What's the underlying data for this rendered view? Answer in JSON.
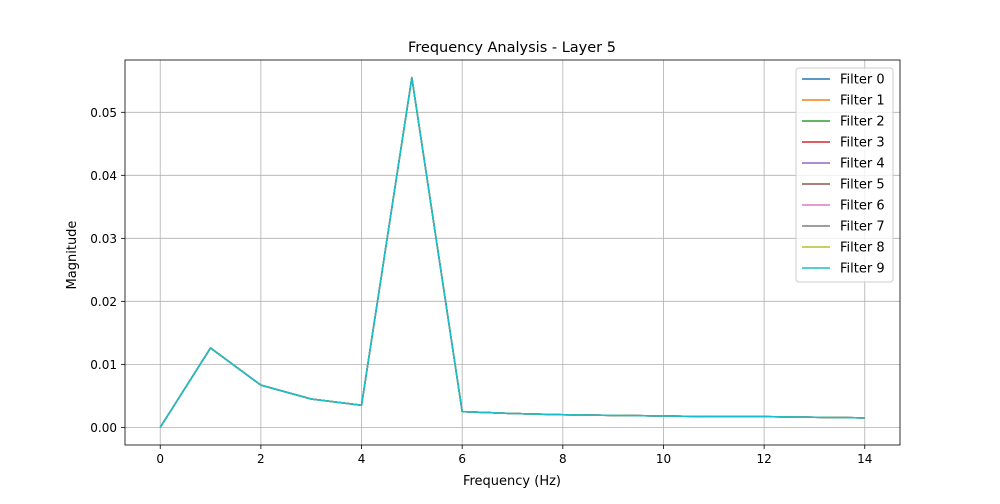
{
  "chart_data": {
    "type": "line",
    "title": "Frequency Analysis - Layer 5",
    "xlabel": "Frequency (Hz)",
    "ylabel": "Magnitude",
    "xlim": [
      -0.7,
      14.7
    ],
    "ylim": [
      -0.0028,
      0.0583
    ],
    "xticks": [
      0,
      2,
      4,
      6,
      8,
      10,
      12,
      14
    ],
    "xtick_labels": [
      "0",
      "2",
      "4",
      "6",
      "8",
      "10",
      "12",
      "14"
    ],
    "yticks": [
      0.0,
      0.01,
      0.02,
      0.03,
      0.04,
      0.05
    ],
    "ytick_labels": [
      "0.00",
      "0.01",
      "0.02",
      "0.03",
      "0.04",
      "0.05"
    ],
    "grid": true,
    "legend_position": "top-right",
    "x": [
      0,
      1,
      2,
      3,
      4,
      5,
      6,
      7,
      8,
      9,
      10,
      11,
      12,
      13,
      14
    ],
    "series": [
      {
        "name": "Filter 0",
        "color": "#1f77b4",
        "values": [
          0.0,
          0.0126,
          0.0067,
          0.0045,
          0.0035,
          0.0555,
          0.0025,
          0.0022,
          0.002,
          0.0019,
          0.0018,
          0.0017,
          0.0017,
          0.0016,
          0.0015
        ]
      },
      {
        "name": "Filter 1",
        "color": "#ff7f0e",
        "values": [
          0.0,
          0.0126,
          0.0067,
          0.0045,
          0.0035,
          0.0555,
          0.0025,
          0.0022,
          0.002,
          0.0019,
          0.0018,
          0.0017,
          0.0017,
          0.0016,
          0.0015
        ]
      },
      {
        "name": "Filter 2",
        "color": "#2ca02c",
        "values": [
          0.0,
          0.0126,
          0.0067,
          0.0045,
          0.0035,
          0.0555,
          0.0025,
          0.0022,
          0.002,
          0.0019,
          0.0018,
          0.0017,
          0.0017,
          0.0016,
          0.0015
        ]
      },
      {
        "name": "Filter 3",
        "color": "#d62728",
        "values": [
          0.0,
          0.0126,
          0.0067,
          0.0045,
          0.0035,
          0.0555,
          0.0025,
          0.0022,
          0.002,
          0.0019,
          0.0018,
          0.0017,
          0.0017,
          0.0016,
          0.0015
        ]
      },
      {
        "name": "Filter 4",
        "color": "#9467bd",
        "values": [
          0.0,
          0.0126,
          0.0067,
          0.0045,
          0.0035,
          0.0555,
          0.0025,
          0.0022,
          0.002,
          0.0019,
          0.0018,
          0.0017,
          0.0017,
          0.0016,
          0.0015
        ]
      },
      {
        "name": "Filter 5",
        "color": "#8c564b",
        "values": [
          0.0,
          0.0126,
          0.0067,
          0.0045,
          0.0035,
          0.0555,
          0.0025,
          0.0022,
          0.002,
          0.0019,
          0.0018,
          0.0017,
          0.0017,
          0.0016,
          0.0015
        ]
      },
      {
        "name": "Filter 6",
        "color": "#e377c2",
        "values": [
          0.0,
          0.0126,
          0.0067,
          0.0045,
          0.0035,
          0.0555,
          0.0025,
          0.0022,
          0.002,
          0.0019,
          0.0018,
          0.0017,
          0.0017,
          0.0016,
          0.0015
        ]
      },
      {
        "name": "Filter 7",
        "color": "#7f7f7f",
        "values": [
          0.0,
          0.0126,
          0.0067,
          0.0045,
          0.0035,
          0.0555,
          0.0025,
          0.0022,
          0.002,
          0.0019,
          0.0018,
          0.0017,
          0.0017,
          0.0016,
          0.0015
        ]
      },
      {
        "name": "Filter 8",
        "color": "#bcbd22",
        "values": [
          0.0,
          0.0126,
          0.0067,
          0.0045,
          0.0035,
          0.0555,
          0.0025,
          0.0022,
          0.002,
          0.0019,
          0.0018,
          0.0017,
          0.0017,
          0.0016,
          0.0015
        ]
      },
      {
        "name": "Filter 9",
        "color": "#17becf",
        "values": [
          0.0,
          0.0126,
          0.0067,
          0.0045,
          0.0035,
          0.0555,
          0.0025,
          0.0022,
          0.002,
          0.0019,
          0.0018,
          0.0017,
          0.0017,
          0.0016,
          0.0015
        ]
      }
    ]
  }
}
